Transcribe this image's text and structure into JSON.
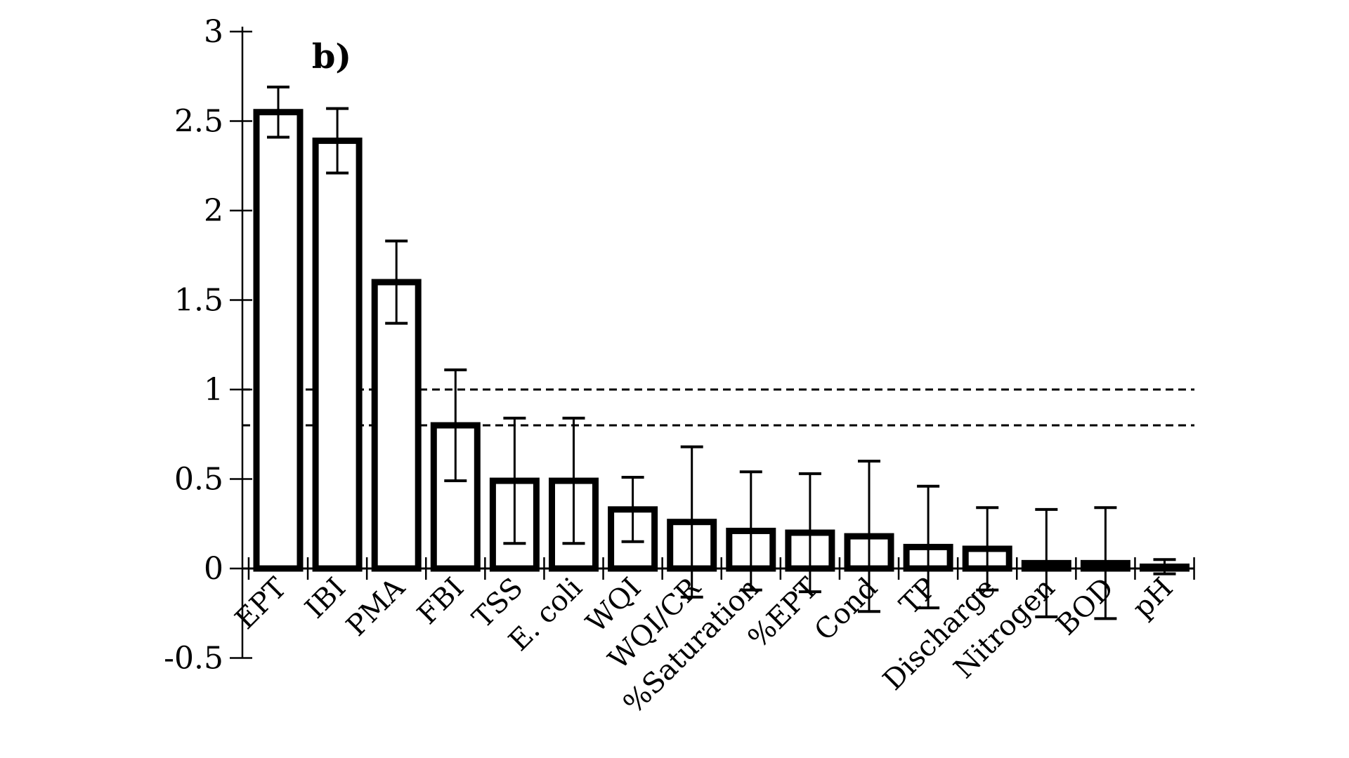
{
  "page": {
    "background_color": "#ffffff",
    "foreground_color": "#000000"
  },
  "chart_data": {
    "type": "bar",
    "panel_label": "b)",
    "title": "",
    "xlabel": "",
    "ylabel": "",
    "categories": [
      "EPT",
      "IBI",
      "PMA",
      "FBI",
      "TSS",
      "E. coli",
      "WQI",
      "WQI/CR",
      "%Saturation",
      "%EPT",
      "Cond",
      "TP",
      "Discharge",
      "Nitrogen",
      "BOD",
      "pH"
    ],
    "series": [
      {
        "name": "effect-size-bars",
        "values": [
          2.55,
          2.39,
          1.6,
          0.8,
          0.49,
          0.49,
          0.33,
          0.26,
          0.21,
          0.2,
          0.18,
          0.12,
          0.11,
          0.03,
          0.03,
          0.01
        ],
        "errors": [
          0.14,
          0.18,
          0.23,
          0.31,
          0.35,
          0.35,
          0.18,
          0.42,
          0.33,
          0.33,
          0.42,
          0.34,
          0.23,
          0.3,
          0.31,
          0.04
        ]
      }
    ],
    "yticks": [
      3,
      2.5,
      2,
      1.5,
      1,
      0.5,
      0,
      -0.5
    ],
    "ytick_labels": [
      "3",
      "2.5",
      "2",
      "1.5",
      "1",
      "0.5",
      "0",
      "-0.5"
    ],
    "ylim": [
      -0.5,
      3
    ],
    "reference_lines": [
      1.0,
      0.8
    ],
    "reference_line_style": "dashed",
    "grid": "off",
    "legend": "none",
    "bar_fill": "#ffffff",
    "bar_stroke": "#000000",
    "axis_color": "#000000"
  }
}
